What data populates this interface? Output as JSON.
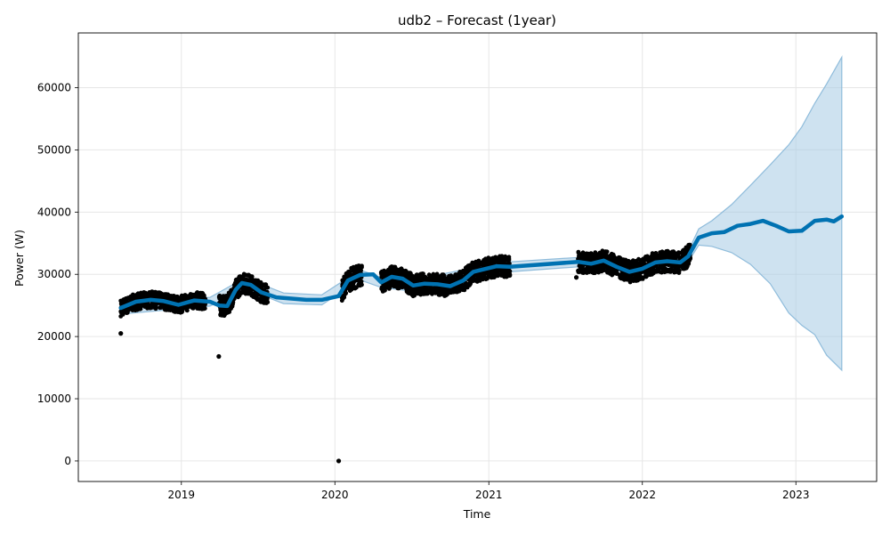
{
  "chart_data": {
    "type": "line",
    "title": "udb2 – Forecast (1year)",
    "xlabel": "Time",
    "ylabel": "Power (W)",
    "x_ticks": [
      "2019",
      "2020",
      "2021",
      "2022",
      "2023"
    ],
    "y_ticks": [
      "0",
      "10000",
      "20000",
      "30000",
      "40000",
      "50000",
      "60000"
    ],
    "xlim": [
      "2018-05-01",
      "2023-07-12"
    ],
    "ylim": [
      -3300,
      68800
    ],
    "grid": true,
    "colors": {
      "forecast_line": "#0072b2",
      "uncertainty_band": "#a6cbe3",
      "observations": "#000000",
      "grid": "#e6e6e6"
    },
    "series": [
      {
        "name": "yhat",
        "role": "forecast",
        "points": [
          [
            "2018-08-10",
            24600
          ],
          [
            "2018-09-15",
            25600
          ],
          [
            "2018-10-20",
            25900
          ],
          [
            "2018-11-20",
            25700
          ],
          [
            "2018-12-25",
            25100
          ],
          [
            "2019-02-01",
            25800
          ],
          [
            "2019-03-10",
            25600
          ],
          [
            "2019-04-01",
            25000
          ],
          [
            "2019-04-20",
            24900
          ],
          [
            "2019-05-10",
            27500
          ],
          [
            "2019-05-25",
            28600
          ],
          [
            "2019-06-15",
            28300
          ],
          [
            "2019-07-10",
            27100
          ],
          [
            "2019-08-15",
            26300
          ],
          [
            "2019-09-20",
            26100
          ],
          [
            "2019-10-25",
            25900
          ],
          [
            "2019-12-01",
            25900
          ],
          [
            "2020-01-10",
            26500
          ],
          [
            "2020-02-01",
            29000
          ],
          [
            "2020-03-01",
            29900
          ],
          [
            "2020-04-01",
            30000
          ],
          [
            "2020-04-20",
            28700
          ],
          [
            "2020-05-15",
            29600
          ],
          [
            "2020-06-10",
            29300
          ],
          [
            "2020-07-05",
            28200
          ],
          [
            "2020-08-01",
            28500
          ],
          [
            "2020-09-01",
            28400
          ],
          [
            "2020-10-01",
            28100
          ],
          [
            "2020-11-01",
            29000
          ],
          [
            "2020-11-25",
            30400
          ],
          [
            "2020-12-20",
            30800
          ],
          [
            "2021-01-20",
            31300
          ],
          [
            "2021-02-20",
            31200
          ],
          [
            "2021-08-01",
            32000
          ],
          [
            "2021-09-01",
            31700
          ],
          [
            "2021-10-01",
            32200
          ],
          [
            "2021-11-01",
            31200
          ],
          [
            "2021-12-01",
            30400
          ],
          [
            "2022-01-01",
            30900
          ],
          [
            "2022-02-01",
            31900
          ],
          [
            "2022-03-01",
            32100
          ],
          [
            "2022-04-01",
            31900
          ],
          [
            "2022-04-20",
            32900
          ],
          [
            "2022-05-15",
            35900
          ],
          [
            "2022-06-15",
            36600
          ],
          [
            "2022-07-15",
            36800
          ],
          [
            "2022-08-15",
            37800
          ],
          [
            "2022-09-15",
            38100
          ],
          [
            "2022-10-15",
            38600
          ],
          [
            "2022-11-15",
            37800
          ],
          [
            "2022-12-15",
            36900
          ],
          [
            "2023-01-15",
            37000
          ],
          [
            "2023-02-15",
            38600
          ],
          [
            "2023-03-15",
            38800
          ],
          [
            "2023-04-01",
            38500
          ],
          [
            "2023-04-20",
            39300
          ]
        ]
      },
      {
        "name": "yhat_upper",
        "role": "band_upper",
        "points": [
          [
            "2018-08-10",
            25600
          ],
          [
            "2019-03-10",
            26300
          ],
          [
            "2019-06-01",
            29400
          ],
          [
            "2019-09-01",
            27000
          ],
          [
            "2019-12-01",
            26700
          ],
          [
            "2020-03-01",
            30700
          ],
          [
            "2020-04-20",
            29500
          ],
          [
            "2020-07-01",
            29100
          ],
          [
            "2020-12-01",
            31100
          ],
          [
            "2021-02-20",
            32000
          ],
          [
            "2021-08-01",
            32700
          ],
          [
            "2022-01-01",
            31600
          ],
          [
            "2022-04-01",
            32600
          ],
          [
            "2022-04-20",
            33700
          ],
          [
            "2022-05-15",
            37300
          ],
          [
            "2022-06-15",
            38600
          ],
          [
            "2022-08-01",
            41200
          ],
          [
            "2022-09-15",
            44300
          ],
          [
            "2022-11-01",
            47600
          ],
          [
            "2022-12-15",
            50800
          ],
          [
            "2023-01-15",
            53700
          ],
          [
            "2023-02-15",
            57500
          ],
          [
            "2023-03-15",
            60600
          ],
          [
            "2023-04-20",
            64900
          ]
        ]
      },
      {
        "name": "yhat_lower",
        "role": "band_lower",
        "points": [
          [
            "2018-08-10",
            23600
          ],
          [
            "2019-03-10",
            24900
          ],
          [
            "2019-06-01",
            27700
          ],
          [
            "2019-09-01",
            25300
          ],
          [
            "2019-12-01",
            25100
          ],
          [
            "2020-03-01",
            29100
          ],
          [
            "2020-04-20",
            27900
          ],
          [
            "2020-07-01",
            27300
          ],
          [
            "2020-12-01",
            30000
          ],
          [
            "2021-02-20",
            30400
          ],
          [
            "2021-08-01",
            31200
          ],
          [
            "2022-01-01",
            30100
          ],
          [
            "2022-04-01",
            31200
          ],
          [
            "2022-04-20",
            32000
          ],
          [
            "2022-05-15",
            34700
          ],
          [
            "2022-06-15",
            34500
          ],
          [
            "2022-08-01",
            33500
          ],
          [
            "2022-09-15",
            31600
          ],
          [
            "2022-11-01",
            28500
          ],
          [
            "2022-12-15",
            23800
          ],
          [
            "2023-01-15",
            21800
          ],
          [
            "2023-02-15",
            20300
          ],
          [
            "2023-03-15",
            17000
          ],
          [
            "2023-04-20",
            14600
          ]
        ]
      },
      {
        "name": "observed",
        "role": "observations",
        "segments": [
          {
            "start": "2018-08-10",
            "end": "2019-02-28",
            "center": 25600,
            "spread": 1500
          },
          {
            "start": "2019-04-01",
            "end": "2019-07-25",
            "center": 27200,
            "spread": 1800
          },
          {
            "start": "2020-01-18",
            "end": "2020-03-05",
            "center": 29500,
            "spread": 2000
          },
          {
            "start": "2020-04-20",
            "end": "2021-02-20",
            "center": 29400,
            "spread": 1900
          },
          {
            "start": "2021-08-01",
            "end": "2022-04-25",
            "center": 31800,
            "spread": 1900
          }
        ],
        "outliers": [
          [
            "2018-08-10",
            20500
          ],
          [
            "2019-03-31",
            16800
          ],
          [
            "2020-01-10",
            0
          ],
          [
            "2021-07-28",
            29500
          ]
        ]
      }
    ]
  }
}
